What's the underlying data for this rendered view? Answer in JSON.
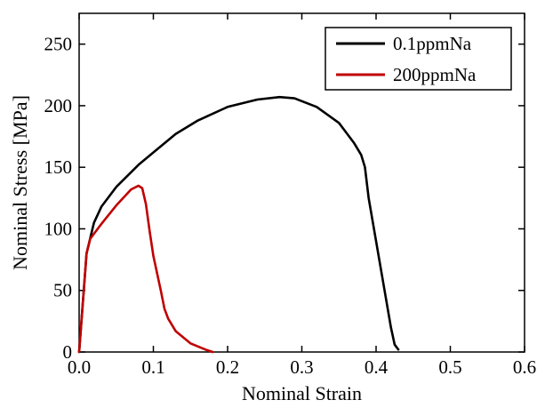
{
  "chart_data": {
    "type": "line",
    "title": "",
    "xlabel": "Nominal Strain",
    "ylabel": "Nominal Stress [MPa]",
    "xlim": [
      0,
      0.6
    ],
    "ylim": [
      0,
      275
    ],
    "xticks": [
      "0.0",
      "0.1",
      "0.2",
      "0.3",
      "0.4",
      "0.5",
      "0.6"
    ],
    "yticks": [
      "0",
      "50",
      "100",
      "150",
      "200",
      "250"
    ],
    "grid": false,
    "legend_position": "top-right",
    "series": [
      {
        "name": "0.1ppmNa",
        "color": "#000000",
        "x": [
          0,
          0.01,
          0.02,
          0.03,
          0.05,
          0.08,
          0.1,
          0.13,
          0.16,
          0.2,
          0.24,
          0.27,
          0.29,
          0.32,
          0.35,
          0.37,
          0.38,
          0.385,
          0.39,
          0.4,
          0.41,
          0.42,
          0.425,
          0.43
        ],
        "y": [
          0,
          80,
          105,
          118,
          134,
          152,
          162,
          177,
          188,
          199,
          205,
          207,
          206,
          199,
          186,
          170,
          160,
          150,
          125,
          90,
          55,
          20,
          6,
          2
        ]
      },
      {
        "name": "200ppmNa",
        "color": "#c00000",
        "x": [
          0,
          0.01,
          0.015,
          0.02,
          0.03,
          0.05,
          0.07,
          0.08,
          0.085,
          0.09,
          0.095,
          0.1,
          0.11,
          0.115,
          0.12,
          0.13,
          0.15,
          0.17,
          0.18
        ],
        "y": [
          0,
          80,
          92,
          96,
          104,
          119,
          132,
          135,
          133,
          120,
          98,
          78,
          50,
          35,
          27,
          17,
          7,
          2,
          0
        ]
      }
    ]
  }
}
